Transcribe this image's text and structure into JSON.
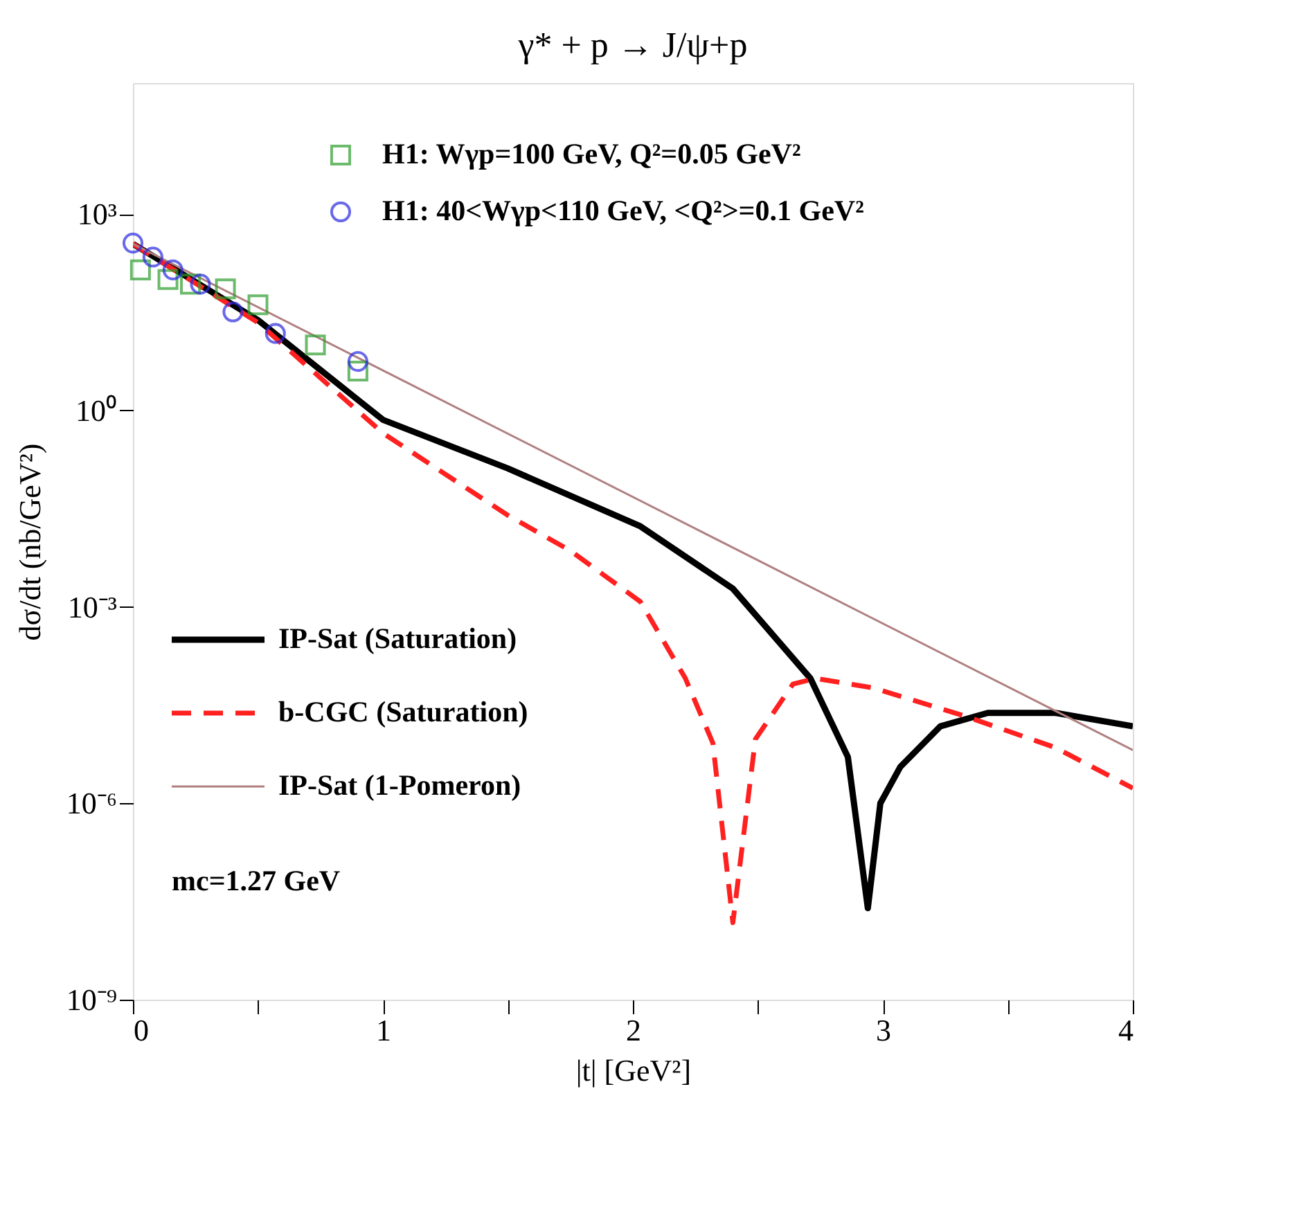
{
  "chart_data": {
    "type": "line",
    "title": "γ* + p → J/ψ+p",
    "xlabel": "|t| [GeV²]",
    "ylabel": "dσ/dt (nb/GeV²)",
    "xlim": [
      0,
      4
    ],
    "xticks": [
      0,
      {
        "value": 0.5,
        "label": null
      },
      1,
      {
        "value": 1.5,
        "label": null
      },
      2,
      {
        "value": 2.5,
        "label": null
      },
      3,
      {
        "value": 3.5,
        "label": null
      },
      4
    ],
    "ylim": [
      1e-09,
      100000
    ],
    "yticks": [
      {
        "value": 1e-09,
        "label": "10⁻⁹"
      },
      {
        "value": 1e-06,
        "label": "10⁻⁶"
      },
      {
        "value": 0.001,
        "label": "10⁻³"
      },
      {
        "value": 1,
        "label": "10⁰"
      },
      {
        "value": 1000,
        "label": "10³"
      }
    ],
    "log": true,
    "grid": false,
    "legend": "top left",
    "series": [
      {
        "name": "H1: Wγp=100 GeV, Q²=0.05 GeV²",
        "type": "scatter",
        "marker": "square",
        "color": "#2e9e2e",
        "x": [
          0.03,
          0.14,
          0.23,
          0.37,
          0.5,
          0.73,
          0.9
        ],
        "values": [
          140,
          100,
          85,
          72,
          41,
          10,
          4
        ]
      },
      {
        "name": "H1: 40<Wγp<110 GeV, <Q²>=0.1 GeV²",
        "type": "scatter",
        "marker": "circle",
        "color": "#2a2ae0",
        "x": [
          0.0,
          0.08,
          0.16,
          0.27,
          0.4,
          0.57,
          0.9
        ],
        "values": [
          360,
          220,
          140,
          85,
          32,
          15,
          5.6
        ]
      },
      {
        "name": "IP-Sat (Saturation)",
        "type": "line",
        "line_style": "solid",
        "color": "#000000",
        "x": [
          0,
          0.5,
          1.0,
          1.5,
          2.03,
          2.4,
          2.71,
          2.86,
          2.94,
          2.99,
          3.07,
          3.23,
          3.42,
          3.69,
          4.0
        ],
        "values": [
          350,
          24,
          0.72,
          0.13,
          0.017,
          0.0019,
          8.1e-05,
          5.1e-06,
          2.5e-08,
          1e-06,
          3.6e-06,
          1.5e-05,
          2.4e-05,
          2.4e-05,
          1.5e-05
        ]
      },
      {
        "name": "b-CGC (Saturation)",
        "type": "line",
        "line_style": "dashed",
        "color": "#ff2020",
        "x": [
          0,
          0.5,
          1.0,
          1.5,
          1.75,
          2.03,
          2.21,
          2.32,
          2.4,
          2.49,
          2.64,
          2.73,
          2.96,
          3.32,
          3.69,
          4.0
        ],
        "values": [
          350,
          22,
          0.45,
          0.025,
          0.0072,
          0.0012,
          8.1e-05,
          8.3e-06,
          1.5e-08,
          9.5e-06,
          6.6e-05,
          8.1e-05,
          5.8e-05,
          2.2e-05,
          7.1e-06,
          1.7e-06
        ]
      },
      {
        "name": "IP-Sat (1-Pomeron)",
        "type": "line",
        "line_style": "solid",
        "color": "#b08080",
        "x": [
          0,
          4
        ],
        "values": [
          350,
          6.5e-06
        ]
      }
    ],
    "annotations": [
      "mc=1.27 GeV"
    ]
  }
}
